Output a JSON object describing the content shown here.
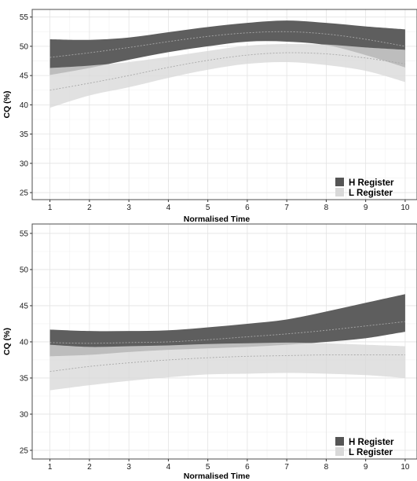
{
  "chart_data": [
    {
      "type": "area",
      "xlabel": "Normalised Time",
      "ylabel": "CQ (%)",
      "xlim": [
        0.55,
        10.3
      ],
      "ylim": [
        23.8,
        56.3
      ],
      "x_ticks": [
        1,
        2,
        3,
        4,
        5,
        6,
        7,
        8,
        9,
        10
      ],
      "y_ticks": [
        25,
        30,
        35,
        40,
        45,
        50,
        55
      ],
      "grid": true,
      "legend_position": "bottom-right",
      "series": [
        {
          "name": "H Register",
          "color": "#555555",
          "x": [
            1,
            2,
            3,
            4,
            5,
            6,
            7,
            8,
            9,
            10
          ],
          "mean": [
            48.1,
            48.9,
            49.8,
            50.8,
            51.7,
            52.3,
            52.5,
            52.1,
            51.2,
            50.0
          ],
          "lower": [
            45.1,
            46.3,
            47.7,
            49.0,
            50.0,
            50.8,
            50.8,
            50.2,
            48.5,
            46.4
          ],
          "upper": [
            51.2,
            51.1,
            51.5,
            52.4,
            53.3,
            54.0,
            54.4,
            54.0,
            53.4,
            52.9
          ]
        },
        {
          "name": "L Register",
          "color": "#d9d9d9",
          "x": [
            1,
            2,
            3,
            4,
            5,
            6,
            7,
            8,
            9,
            10
          ],
          "mean": [
            42.5,
            43.7,
            45.0,
            46.4,
            47.6,
            48.5,
            48.9,
            48.7,
            48.0,
            47.0
          ],
          "lower": [
            39.5,
            41.6,
            43.0,
            44.6,
            46.0,
            47.0,
            47.3,
            46.8,
            45.8,
            43.9
          ],
          "upper": [
            46.3,
            46.7,
            47.3,
            48.2,
            49.2,
            50.1,
            50.4,
            50.3,
            49.8,
            49.4
          ]
        }
      ]
    },
    {
      "type": "area",
      "xlabel": "Normalised Time",
      "ylabel": "CQ (%)",
      "xlim": [
        0.55,
        10.3
      ],
      "ylim": [
        23.8,
        56.3
      ],
      "x_ticks": [
        1,
        2,
        3,
        4,
        5,
        6,
        7,
        8,
        9,
        10
      ],
      "y_ticks": [
        25,
        30,
        35,
        40,
        45,
        50,
        55
      ],
      "grid": true,
      "legend_position": "bottom-right",
      "series": [
        {
          "name": "H Register",
          "color": "#555555",
          "x": [
            1,
            2,
            3,
            4,
            5,
            6,
            7,
            8,
            9,
            10
          ],
          "mean": [
            39.9,
            39.8,
            39.9,
            40.0,
            40.3,
            40.7,
            41.1,
            41.6,
            42.2,
            42.8
          ],
          "lower": [
            38.0,
            38.2,
            38.6,
            38.9,
            39.1,
            39.3,
            39.6,
            40.0,
            40.5,
            41.4
          ],
          "upper": [
            41.7,
            41.5,
            41.5,
            41.6,
            42.0,
            42.5,
            43.1,
            44.2,
            45.4,
            46.6
          ]
        },
        {
          "name": "L Register",
          "color": "#d9d9d9",
          "x": [
            1,
            2,
            3,
            4,
            5,
            6,
            7,
            8,
            9,
            10
          ],
          "mean": [
            35.9,
            36.6,
            37.1,
            37.5,
            37.8,
            38.0,
            38.1,
            38.2,
            38.2,
            38.2
          ],
          "lower": [
            33.3,
            34.0,
            34.6,
            35.1,
            35.5,
            35.6,
            35.7,
            35.6,
            35.4,
            35.0
          ],
          "upper": [
            39.6,
            39.3,
            39.4,
            39.5,
            39.7,
            39.8,
            39.9,
            39.8,
            39.6,
            39.4
          ]
        }
      ]
    }
  ]
}
